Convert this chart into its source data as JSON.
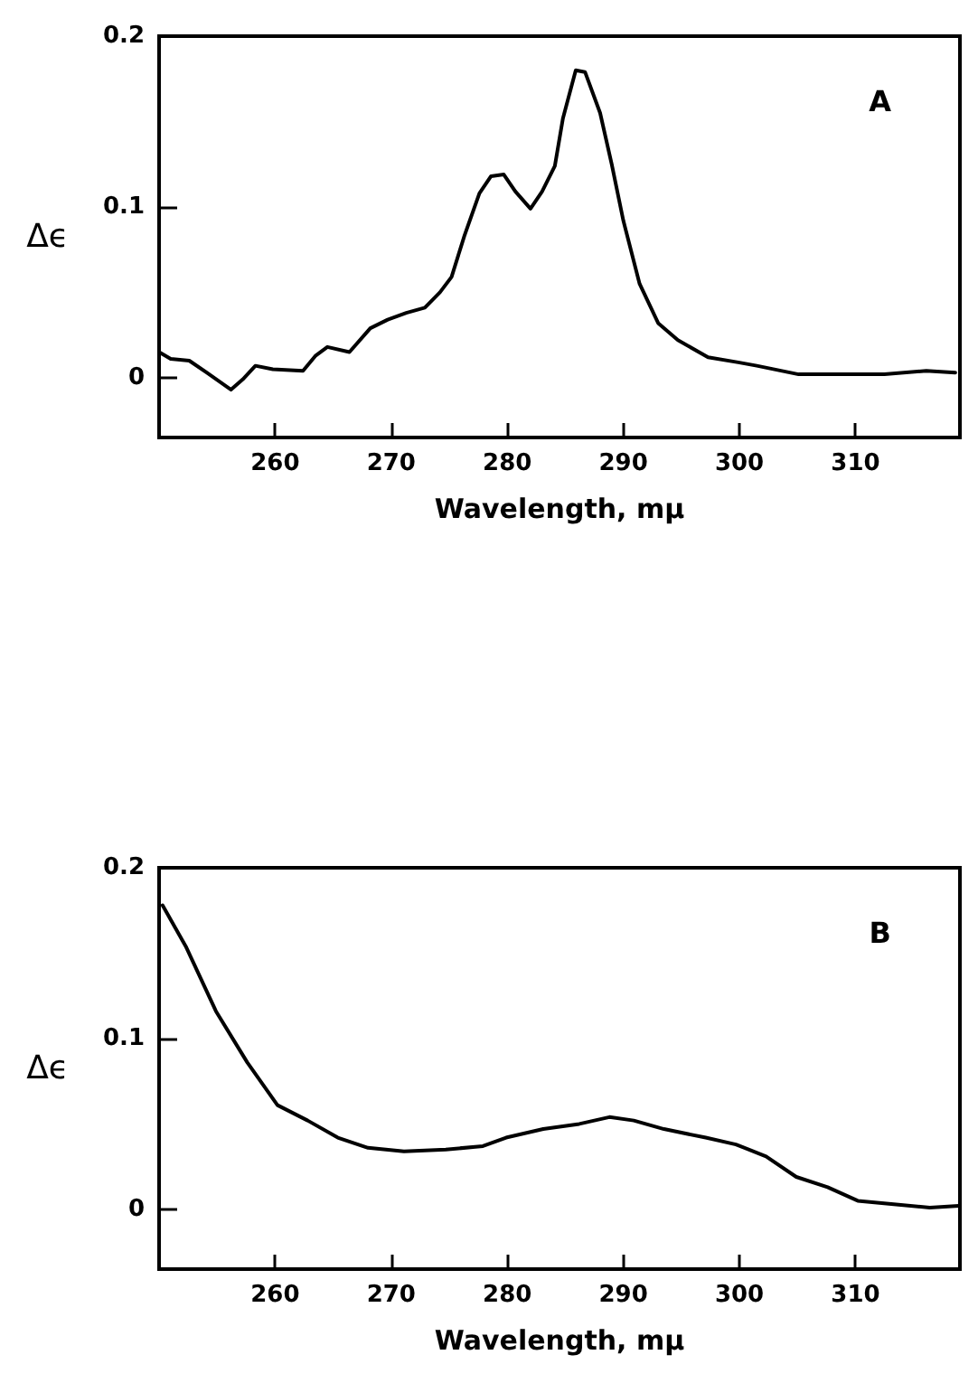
{
  "chart_data": [
    {
      "type": "line",
      "xlabel": "Wavelength, mμ",
      "ylabel": "Δϵ",
      "annotations": [
        "A"
      ],
      "color": "#000000",
      "marker": "none",
      "grid": false,
      "xlim": [
        250,
        319
      ],
      "ylim": [
        -0.035,
        0.2
      ],
      "xticks": [
        260,
        270,
        280,
        290,
        300,
        310
      ],
      "yticks": [
        0,
        0.1,
        0.2
      ],
      "x": [
        250,
        251,
        252.6,
        254.1,
        256.2,
        257.2,
        258.3,
        259.8,
        262.4,
        263.5,
        264.5,
        266.4,
        268.2,
        269.7,
        271.3,
        272.9,
        274.2,
        275.2,
        276.3,
        277.6,
        278.6,
        279.7,
        280.7,
        282,
        283,
        284.1,
        284.8,
        285.9,
        286.7,
        288,
        289,
        290,
        291.4,
        293,
        294.7,
        297.3,
        299.9,
        301.5,
        305.1,
        309.8,
        312.5,
        316.1,
        318.6
      ],
      "values": [
        0.015,
        0.011,
        0.01,
        0.003,
        -0.007,
        -0.001,
        0.007,
        0.005,
        0.004,
        0.013,
        0.018,
        0.015,
        0.029,
        0.034,
        0.038,
        0.041,
        0.05,
        0.059,
        0.083,
        0.108,
        0.118,
        0.119,
        0.109,
        0.099,
        0.109,
        0.124,
        0.152,
        0.18,
        0.179,
        0.155,
        0.125,
        0.092,
        0.055,
        0.032,
        0.022,
        0.012,
        0.009,
        0.007,
        0.002,
        0.002,
        0.002,
        0.004,
        0.003
      ]
    },
    {
      "type": "line",
      "xlabel": "Wavelength, mμ",
      "ylabel": "Δϵ",
      "annotations": [
        "B"
      ],
      "color": "#000000",
      "marker": "none",
      "grid": false,
      "xlim": [
        250,
        319
      ],
      "ylim": [
        -0.035,
        0.2
      ],
      "xticks": [
        260,
        270,
        280,
        290,
        300,
        310
      ],
      "yticks": [
        0,
        0.1,
        0.2
      ],
      "x": [
        250.3,
        252.3,
        254.9,
        257.6,
        260.2,
        262.8,
        265.4,
        268,
        271.1,
        274.7,
        277.9,
        279.9,
        283.1,
        286.2,
        288.8,
        290.9,
        293.5,
        297.1,
        299.7,
        302.3,
        304.9,
        307.6,
        310.2,
        313.3,
        316.4,
        318.9
      ],
      "values": [
        0.178,
        0.154,
        0.116,
        0.086,
        0.061,
        0.052,
        0.042,
        0.036,
        0.034,
        0.035,
        0.037,
        0.042,
        0.047,
        0.05,
        0.054,
        0.052,
        0.047,
        0.042,
        0.038,
        0.031,
        0.019,
        0.013,
        0.005,
        0.003,
        0.001,
        0.002
      ]
    }
  ]
}
